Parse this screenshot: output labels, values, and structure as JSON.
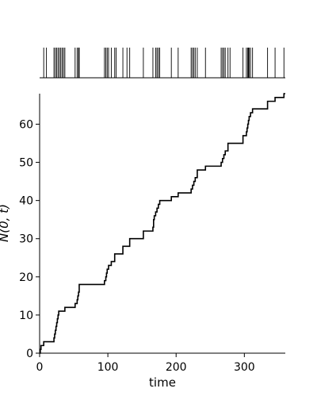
{
  "chart_data": [
    {
      "type": "event_raster",
      "title": "",
      "xlim": [
        0,
        360
      ],
      "events": [
        6,
        10,
        21,
        23,
        25,
        27,
        29,
        31,
        33,
        35,
        37,
        52,
        55,
        57,
        58,
        95,
        97,
        99,
        101,
        105,
        110,
        112,
        122,
        128,
        132,
        152,
        166,
        170,
        172,
        174,
        176,
        193,
        203,
        222,
        224,
        226,
        228,
        231,
        243,
        266,
        268,
        270,
        272,
        276,
        279,
        298,
        303,
        305,
        306,
        307,
        309,
        312,
        334,
        345,
        358
      ]
    },
    {
      "type": "line",
      "step": true,
      "title": "",
      "xlabel": "time",
      "ylabel": "N(0, t)",
      "xlim": [
        0,
        360
      ],
      "ylim": [
        0,
        68
      ],
      "xticks": [
        0,
        100,
        200,
        300
      ],
      "yticks": [
        0,
        10,
        20,
        30,
        40,
        50,
        60
      ],
      "color": "#000000",
      "x": [
        0,
        1,
        2,
        6,
        10,
        21,
        22,
        23,
        24,
        25,
        26,
        27,
        28,
        29,
        30,
        31,
        33,
        35,
        37,
        52,
        55,
        56,
        57,
        58,
        95,
        97,
        98,
        99,
        101,
        105,
        110,
        112,
        122,
        128,
        132,
        152,
        166,
        167,
        168,
        170,
        172,
        174,
        176,
        193,
        203,
        222,
        224,
        226,
        228,
        231,
        243,
        266,
        268,
        270,
        272,
        276,
        279,
        298,
        303,
        304,
        305,
        306,
        307,
        309,
        312,
        334,
        345,
        358,
        360
      ],
      "y": [
        0,
        1,
        2,
        3,
        3,
        4,
        5,
        6,
        7,
        8,
        9,
        10,
        11,
        11,
        11,
        11,
        11,
        11,
        12,
        13,
        14,
        15,
        16,
        18,
        19,
        20,
        21,
        22,
        23,
        24,
        26,
        26,
        28,
        28,
        30,
        32,
        33,
        35,
        36,
        37,
        38,
        39,
        40,
        41,
        42,
        43,
        44,
        45,
        46,
        48,
        49,
        50,
        51,
        52,
        53,
        55,
        55,
        57,
        58,
        59,
        60,
        61,
        62,
        63,
        64,
        66,
        67,
        68,
        68
      ]
    }
  ]
}
